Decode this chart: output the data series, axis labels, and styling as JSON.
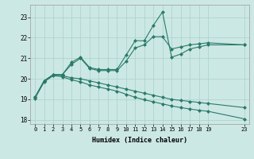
{
  "xlabel": "Humidex (Indice chaleur)",
  "bg_color": "#cce8e4",
  "line_color": "#2a7a6a",
  "grid_color": "#aed4ce",
  "xlim": [
    -0.5,
    23.5
  ],
  "ylim": [
    17.8,
    23.6
  ],
  "yticks": [
    18,
    19,
    20,
    21,
    22,
    23
  ],
  "xticks": [
    0,
    1,
    2,
    3,
    4,
    5,
    6,
    7,
    8,
    9,
    10,
    11,
    12,
    13,
    14,
    15,
    16,
    17,
    18,
    19,
    23
  ],
  "line1_x": [
    0,
    1,
    2,
    3,
    4,
    5,
    6,
    7,
    8,
    9,
    10,
    11,
    12,
    13,
    14,
    15,
    16,
    17,
    18,
    19,
    23
  ],
  "line1_y": [
    19.1,
    19.9,
    20.2,
    20.2,
    20.8,
    21.05,
    20.55,
    20.45,
    20.45,
    20.45,
    21.15,
    21.85,
    21.85,
    22.6,
    23.25,
    21.05,
    21.2,
    21.45,
    21.55,
    21.65,
    21.65
  ],
  "line2_x": [
    0,
    1,
    2,
    3,
    4,
    5,
    6,
    7,
    8,
    9,
    10,
    11,
    12,
    13,
    14,
    15,
    16,
    17,
    18,
    19,
    23
  ],
  "line2_y": [
    19.1,
    19.9,
    20.2,
    20.2,
    20.7,
    21.0,
    20.5,
    20.4,
    20.4,
    20.4,
    20.85,
    21.5,
    21.65,
    22.05,
    22.05,
    21.45,
    21.55,
    21.65,
    21.7,
    21.75,
    21.65
  ],
  "line3_x": [
    0,
    1,
    2,
    3,
    4,
    5,
    6,
    7,
    8,
    9,
    10,
    11,
    12,
    13,
    14,
    15,
    16,
    17,
    18,
    19,
    23
  ],
  "line3_y": [
    19.1,
    19.9,
    20.2,
    20.15,
    20.05,
    20.0,
    19.9,
    19.8,
    19.7,
    19.6,
    19.5,
    19.4,
    19.3,
    19.2,
    19.1,
    19.0,
    18.95,
    18.9,
    18.85,
    18.8,
    18.6
  ],
  "line4_x": [
    0,
    1,
    2,
    3,
    4,
    5,
    6,
    7,
    8,
    9,
    10,
    11,
    12,
    13,
    14,
    15,
    16,
    17,
    18,
    19,
    23
  ],
  "line4_y": [
    19.05,
    19.85,
    20.15,
    20.1,
    19.95,
    19.85,
    19.7,
    19.6,
    19.5,
    19.4,
    19.25,
    19.1,
    18.98,
    18.88,
    18.78,
    18.68,
    18.6,
    18.53,
    18.47,
    18.42,
    18.05
  ],
  "marker": "D",
  "markersize": 2.0,
  "linewidth": 0.8
}
